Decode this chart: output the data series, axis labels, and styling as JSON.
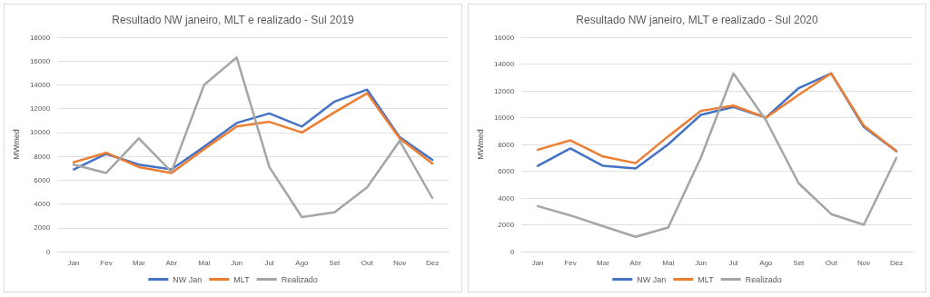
{
  "chart_data": [
    {
      "type": "line",
      "title": "Resultado NW janeiro, MLT e realizado - Sul 2019",
      "ylabel": "MWmed",
      "categories": [
        "Jan",
        "Fev",
        "Mar",
        "Abr",
        "Mai",
        "Jun",
        "Jul",
        "Ago",
        "Set",
        "Out",
        "Nov",
        "Dez"
      ],
      "series": [
        {
          "name": "NW Jan",
          "color": "#4472c4",
          "values": [
            6900,
            8200,
            7300,
            6900,
            8800,
            10800,
            11600,
            10500,
            12600,
            13600,
            9600,
            7700
          ]
        },
        {
          "name": "MLT",
          "color": "#ed7d31",
          "values": [
            7500,
            8300,
            7100,
            6600,
            8600,
            10500,
            10900,
            10000,
            11700,
            13300,
            9500,
            7400
          ]
        },
        {
          "name": "Realizado",
          "color": "#a5a5a5",
          "values": [
            7300,
            6600,
            9500,
            6700,
            14000,
            16300,
            7100,
            2900,
            3300,
            5400,
            9300,
            4500
          ]
        }
      ],
      "ylim": [
        0,
        18000
      ],
      "yticks": [
        0,
        2000,
        4000,
        6000,
        8000,
        10000,
        12000,
        14000,
        16000,
        18000
      ],
      "grid": "y",
      "legend": "bottom",
      "marker": "none",
      "line_style": "solid"
    },
    {
      "type": "line",
      "title": "Resultado NW janeiro, MLT e realizado - Sul 2020",
      "ylabel": "MWmed",
      "categories": [
        "Jan",
        "Fev",
        "Mar",
        "Abr",
        "Mai",
        "Jun",
        "Jul",
        "Ago",
        "Set",
        "Out",
        "Nov",
        "Dez"
      ],
      "series": [
        {
          "name": "NW Jan",
          "color": "#4472c4",
          "values": [
            6400,
            7700,
            6400,
            6200,
            8000,
            10200,
            10800,
            10000,
            12200,
            13300,
            9300,
            7500
          ]
        },
        {
          "name": "MLT",
          "color": "#ed7d31",
          "values": [
            7600,
            8300,
            7100,
            6600,
            8600,
            10500,
            10900,
            10000,
            11700,
            13300,
            9400,
            7500
          ]
        },
        {
          "name": "Realizado",
          "color": "#a5a5a5",
          "values": [
            3400,
            2700,
            1900,
            1100,
            1800,
            7000,
            13300,
            9800,
            5100,
            2800,
            2000,
            7000
          ]
        }
      ],
      "ylim": [
        0,
        16000
      ],
      "yticks": [
        0,
        2000,
        4000,
        6000,
        8000,
        10000,
        12000,
        14000,
        16000
      ],
      "grid": "y",
      "legend": "bottom",
      "marker": "none",
      "line_style": "solid"
    }
  ]
}
